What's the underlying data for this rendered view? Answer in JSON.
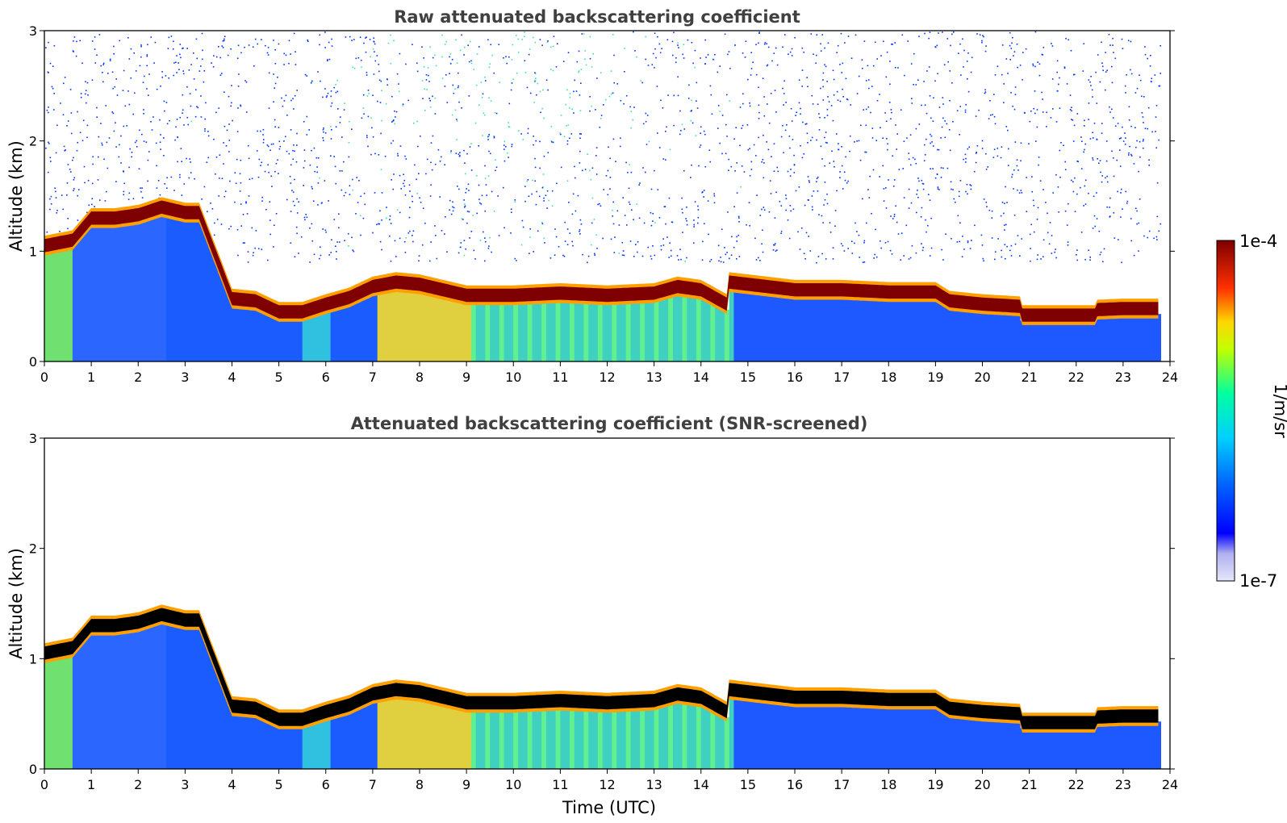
{
  "chart_data": [
    {
      "type": "heatmap",
      "title": "Raw attenuated backscattering coefficient",
      "xlabel": "",
      "ylabel": "Altitude (km)",
      "xlim": [
        0,
        24
      ],
      "ylim": [
        0,
        3
      ],
      "x_ticks": [
        "0",
        "1",
        "2",
        "3",
        "4",
        "5",
        "6",
        "7",
        "8",
        "9",
        "10",
        "11",
        "12",
        "13",
        "14",
        "15",
        "16",
        "17",
        "18",
        "19",
        "20",
        "21",
        "22",
        "23",
        "24"
      ],
      "y_ticks": [
        "0",
        "1",
        "2",
        "3"
      ],
      "data_end_time": 23.8,
      "layer": {
        "time": [
          0,
          0.6,
          1,
          1.5,
          2,
          2.5,
          3,
          3.3,
          4,
          4.5,
          5,
          5.5,
          6,
          6.5,
          7,
          7.5,
          8,
          8.5,
          9,
          10,
          11,
          12,
          13,
          13.5,
          14,
          14.55,
          14.6,
          15,
          16,
          17,
          18,
          19,
          19.3,
          20,
          20.8,
          20.85,
          21,
          22,
          22.4,
          22.45,
          23,
          23.8
        ],
        "altitude_km": [
          1.05,
          1.1,
          1.3,
          1.3,
          1.33,
          1.4,
          1.35,
          1.35,
          0.57,
          0.55,
          0.45,
          0.45,
          0.52,
          0.58,
          0.68,
          0.72,
          0.7,
          0.65,
          0.6,
          0.6,
          0.62,
          0.6,
          0.62,
          0.68,
          0.65,
          0.52,
          0.72,
          0.7,
          0.65,
          0.65,
          0.63,
          0.63,
          0.55,
          0.52,
          0.5,
          0.42,
          0.42,
          0.42,
          0.42,
          0.47,
          0.48,
          0.48
        ],
        "color": "#7f0000"
      },
      "noise_present": true
    },
    {
      "type": "heatmap",
      "title": "Attenuated backscattering coefficient (SNR-screened)",
      "xlabel": "Time (UTC)",
      "ylabel": "Altitude (km)",
      "xlim": [
        0,
        24
      ],
      "ylim": [
        0,
        3
      ],
      "x_ticks": [
        "0",
        "1",
        "2",
        "3",
        "4",
        "5",
        "6",
        "7",
        "8",
        "9",
        "10",
        "11",
        "12",
        "13",
        "14",
        "15",
        "16",
        "17",
        "18",
        "19",
        "20",
        "21",
        "22",
        "23",
        "24"
      ],
      "y_ticks": [
        "0",
        "1",
        "2",
        "3"
      ],
      "data_end_time": 23.8,
      "layer": {
        "time": [
          0,
          0.6,
          1,
          1.5,
          2,
          2.5,
          3,
          3.3,
          4,
          4.5,
          5,
          5.5,
          6,
          6.5,
          7,
          7.5,
          8,
          8.5,
          9,
          10,
          11,
          12,
          13,
          13.5,
          14,
          14.55,
          14.6,
          15,
          16,
          17,
          18,
          19,
          19.3,
          20,
          20.8,
          20.85,
          21,
          22,
          22.4,
          22.45,
          23,
          23.8
        ],
        "altitude_km": [
          1.05,
          1.1,
          1.3,
          1.3,
          1.33,
          1.4,
          1.35,
          1.35,
          0.57,
          0.55,
          0.45,
          0.45,
          0.52,
          0.58,
          0.68,
          0.72,
          0.7,
          0.65,
          0.6,
          0.6,
          0.62,
          0.6,
          0.62,
          0.68,
          0.65,
          0.52,
          0.72,
          0.7,
          0.65,
          0.65,
          0.63,
          0.63,
          0.55,
          0.52,
          0.5,
          0.42,
          0.42,
          0.42,
          0.42,
          0.47,
          0.48,
          0.48
        ],
        "color": "#000000"
      },
      "noise_present": false
    }
  ],
  "colorbar": {
    "label": "1/m/sr",
    "max_label": "1e-4",
    "min_label": "1e-7",
    "colormap": "jet",
    "colors": [
      "#e6e6fa",
      "#0000ff",
      "#00bfff",
      "#00ffbf",
      "#bfff00",
      "#ffd700",
      "#ff4500",
      "#7f0000"
    ]
  }
}
